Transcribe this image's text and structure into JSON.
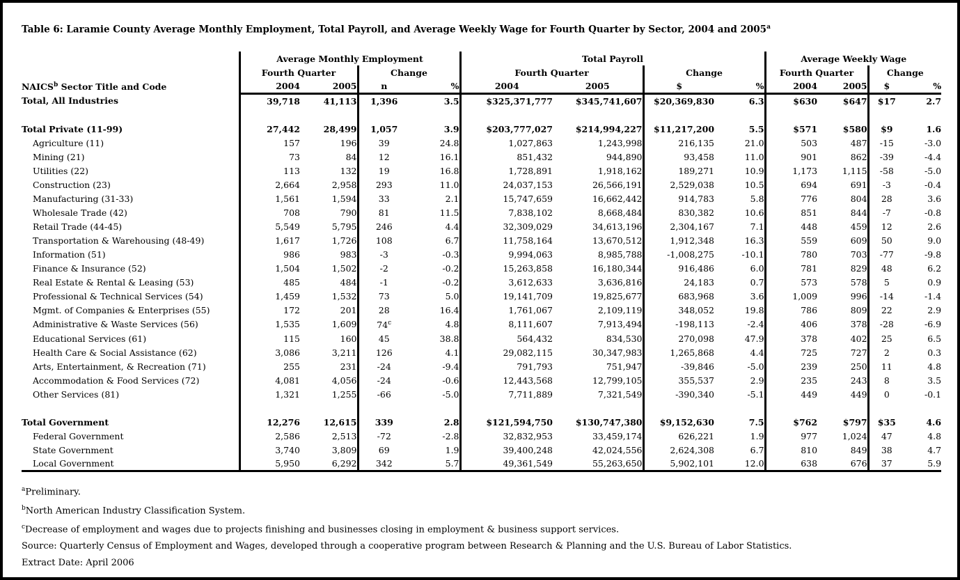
{
  "title": {
    "text": "Table 6: Laramie County Average Monthly Employment, Total Payroll, and Average Weekly Wage for Fourth Quarter by Sector, 2004 and 2005",
    "superscript": "a"
  },
  "table": {
    "sector_header": {
      "prefix": "NAICS",
      "superscript": "b",
      "suffix": " Sector Title and Code"
    },
    "groups": [
      {
        "label": "Average Monthly Employment",
        "quarter_label": "Fourth Quarter",
        "change_label": "Change",
        "columns": [
          "2004",
          "2005",
          "n",
          "%"
        ]
      },
      {
        "label": "Total Payroll",
        "quarter_label": "Fourth Quarter",
        "change_label": "Change",
        "columns": [
          "2004",
          "2005",
          "$",
          "%"
        ]
      },
      {
        "label": "Average Weekly Wage",
        "quarter_label": "Fourth Quarter",
        "change_label": "Change",
        "columns": [
          "2004",
          "2005",
          "$",
          "%"
        ]
      }
    ],
    "rows": [
      {
        "label": "Total, All Industries",
        "style": "total",
        "values": [
          "39,718",
          "41,113",
          "1,396",
          "3.5",
          "$325,371,777",
          "$345,741,607",
          "$20,369,830",
          "6.3",
          "$630",
          "$647",
          "$17",
          "2.7"
        ]
      },
      {
        "style": "spacer"
      },
      {
        "label": "Total Private (11-99)",
        "style": "total",
        "values": [
          "27,442",
          "28,499",
          "1,057",
          "3.9",
          "$203,777,027",
          "$214,994,227",
          "$11,217,200",
          "5.5",
          "$571",
          "$580",
          "$9",
          "1.6"
        ]
      },
      {
        "label": "Agriculture (11)",
        "style": "detail",
        "values": [
          "157",
          "196",
          "39",
          "24.8",
          "1,027,863",
          "1,243,998",
          "216,135",
          "21.0",
          "503",
          "487",
          "-15",
          "-3.0"
        ]
      },
      {
        "label": "Mining (21)",
        "style": "detail",
        "values": [
          "73",
          "84",
          "12",
          "16.1",
          "851,432",
          "944,890",
          "93,458",
          "11.0",
          "901",
          "862",
          "-39",
          "-4.4"
        ]
      },
      {
        "label": "Utilities (22)",
        "style": "detail",
        "values": [
          "113",
          "132",
          "19",
          "16.8",
          "1,728,891",
          "1,918,162",
          "189,271",
          "10.9",
          "1,173",
          "1,115",
          "-58",
          "-5.0"
        ]
      },
      {
        "label": "Construction (23)",
        "style": "detail",
        "values": [
          "2,664",
          "2,958",
          "293",
          "11.0",
          "24,037,153",
          "26,566,191",
          "2,529,038",
          "10.5",
          "694",
          "691",
          "-3",
          "-0.4"
        ]
      },
      {
        "label": "Manufacturing (31-33)",
        "style": "detail",
        "values": [
          "1,561",
          "1,594",
          "33",
          "2.1",
          "15,747,659",
          "16,662,442",
          "914,783",
          "5.8",
          "776",
          "804",
          "28",
          "3.6"
        ]
      },
      {
        "label": "Wholesale Trade (42)",
        "style": "detail",
        "values": [
          "708",
          "790",
          "81",
          "11.5",
          "7,838,102",
          "8,668,484",
          "830,382",
          "10.6",
          "851",
          "844",
          "-7",
          "-0.8"
        ]
      },
      {
        "label": "Retail Trade (44-45)",
        "style": "detail",
        "values": [
          "5,549",
          "5,795",
          "246",
          "4.4",
          "32,309,029",
          "34,613,196",
          "2,304,167",
          "7.1",
          "448",
          "459",
          "12",
          "2.6"
        ]
      },
      {
        "label": "Transportation & Warehousing (48-49)",
        "style": "detail",
        "values": [
          "1,617",
          "1,726",
          "108",
          "6.7",
          "11,758,164",
          "13,670,512",
          "1,912,348",
          "16.3",
          "559",
          "609",
          "50",
          "9.0"
        ]
      },
      {
        "label": "Information (51)",
        "style": "detail",
        "values": [
          "986",
          "983",
          "-3",
          "-0.3",
          "9,994,063",
          "8,985,788",
          "-1,008,275",
          "-10.1",
          "780",
          "703",
          "-77",
          "-9.8"
        ]
      },
      {
        "label": "Finance & Insurance (52)",
        "style": "detail",
        "values": [
          "1,504",
          "1,502",
          "-2",
          "-0.2",
          "15,263,858",
          "16,180,344",
          "916,486",
          "6.0",
          "781",
          "829",
          "48",
          "6.2"
        ]
      },
      {
        "label": "Real Estate & Rental & Leasing (53)",
        "style": "detail",
        "values": [
          "485",
          "484",
          "-1",
          "-0.2",
          "3,612,633",
          "3,636,816",
          "24,183",
          "0.7",
          "573",
          "578",
          "5",
          "0.9"
        ]
      },
      {
        "label": "Professional & Technical Services (54)",
        "style": "detail",
        "values": [
          "1,459",
          "1,532",
          "73",
          "5.0",
          "19,141,709",
          "19,825,677",
          "683,968",
          "3.6",
          "1,009",
          "996",
          "-14",
          "-1.4"
        ]
      },
      {
        "label": "Mgmt. of Companies & Enterprises (55)",
        "style": "detail",
        "values": [
          "172",
          "201",
          "28",
          "16.4",
          "1,761,067",
          "2,109,119",
          "348,052",
          "19.8",
          "786",
          "809",
          "22",
          "2.9"
        ]
      },
      {
        "label": "Administrative & Waste Services (56)",
        "style": "detail",
        "values": [
          "1,535",
          "1,609",
          "74^c",
          "4.8",
          "8,111,607",
          "7,913,494",
          "-198,113",
          "-2.4",
          "406",
          "378",
          "-28",
          "-6.9"
        ]
      },
      {
        "label": "Educational Services (61)",
        "style": "detail",
        "values": [
          "115",
          "160",
          "45",
          "38.8",
          "564,432",
          "834,530",
          "270,098",
          "47.9",
          "378",
          "402",
          "25",
          "6.5"
        ]
      },
      {
        "label": "Health Care & Social Assistance (62)",
        "style": "detail",
        "values": [
          "3,086",
          "3,211",
          "126",
          "4.1",
          "29,082,115",
          "30,347,983",
          "1,265,868",
          "4.4",
          "725",
          "727",
          "2",
          "0.3"
        ]
      },
      {
        "label": "Arts, Entertainment, & Recreation (71)",
        "style": "detail",
        "values": [
          "255",
          "231",
          "-24",
          "-9.4",
          "791,793",
          "751,947",
          "-39,846",
          "-5.0",
          "239",
          "250",
          "11",
          "4.8"
        ]
      },
      {
        "label": "Accommodation & Food Services (72)",
        "style": "detail",
        "values": [
          "4,081",
          "4,056",
          "-24",
          "-0.6",
          "12,443,568",
          "12,799,105",
          "355,537",
          "2.9",
          "235",
          "243",
          "8",
          "3.5"
        ]
      },
      {
        "label": "Other Services (81)",
        "style": "detail",
        "values": [
          "1,321",
          "1,255",
          "-66",
          "-5.0",
          "7,711,889",
          "7,321,549",
          "-390,340",
          "-5.1",
          "449",
          "449",
          "0",
          "-0.1"
        ]
      },
      {
        "style": "spacer"
      },
      {
        "label": "Total Government",
        "style": "total",
        "values": [
          "12,276",
          "12,615",
          "339",
          "2.8",
          "$121,594,750",
          "$130,747,380",
          "$9,152,630",
          "7.5",
          "$762",
          "$797",
          "$35",
          "4.6"
        ]
      },
      {
        "label": "Federal Government",
        "style": "detail",
        "values": [
          "2,586",
          "2,513",
          "-72",
          "-2.8",
          "32,832,953",
          "33,459,174",
          "626,221",
          "1.9",
          "977",
          "1,024",
          "47",
          "4.8"
        ]
      },
      {
        "label": "State Government",
        "style": "detail",
        "values": [
          "3,740",
          "3,809",
          "69",
          "1.9",
          "39,400,248",
          "42,024,556",
          "2,624,308",
          "6.7",
          "810",
          "849",
          "38",
          "4.7"
        ]
      },
      {
        "label": "Local Government",
        "style": "detail",
        "values": [
          "5,950",
          "6,292",
          "342",
          "5.7",
          "49,361,549",
          "55,263,650",
          "5,902,101",
          "12.0",
          "638",
          "676",
          "37",
          "5.9"
        ]
      }
    ]
  },
  "footnotes": [
    {
      "superscript": "a",
      "text": "Preliminary."
    },
    {
      "superscript": "b",
      "text": "North American Industry Classification System."
    },
    {
      "superscript": "c",
      "text": "Decrease of employment and wages due to projects finishing and businesses closing in employment & business support services."
    },
    {
      "superscript": "",
      "text": "Source: Quarterly Census of Employment and Wages, developed through a cooperative program between Research & Planning and the U.S. Bureau of Labor Statistics."
    },
    {
      "superscript": "",
      "text": "Extract Date: April 2006"
    }
  ]
}
